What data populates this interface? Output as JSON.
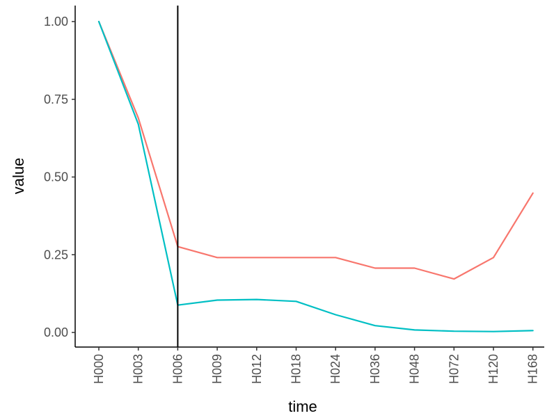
{
  "chart_data": {
    "type": "line",
    "title": "",
    "xlabel": "time",
    "ylabel": "value",
    "categories": [
      "H000",
      "H003",
      "H006",
      "H009",
      "H012",
      "H018",
      "H024",
      "H036",
      "H048",
      "H072",
      "H120",
      "H168"
    ],
    "ylim": [
      -0.05,
      1.05
    ],
    "yticks": [
      0.0,
      0.25,
      0.5,
      0.75,
      1.0
    ],
    "ytick_labels": [
      "0.00",
      "0.25",
      "0.50",
      "0.75",
      "1.00"
    ],
    "grid": false,
    "legend": "none",
    "vline_at": "H006",
    "series": [
      {
        "color": "#F8766D",
        "values": [
          1.0,
          0.69,
          0.276,
          0.241,
          0.241,
          0.241,
          0.241,
          0.207,
          0.207,
          0.172,
          0.241,
          0.448
        ]
      },
      {
        "color": "#00BFC4",
        "values": [
          1.0,
          0.67,
          0.088,
          0.104,
          0.106,
          0.1,
          0.057,
          0.022,
          0.008,
          0.004,
          0.003,
          0.006
        ]
      }
    ]
  }
}
